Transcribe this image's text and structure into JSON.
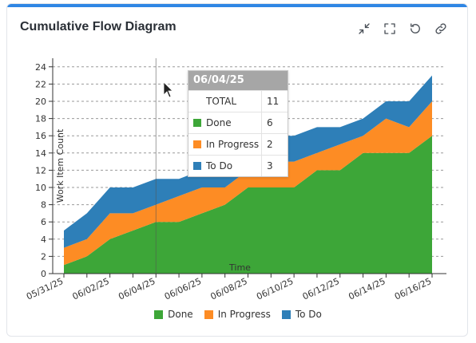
{
  "header": {
    "title": "Cumulative Flow Diagram"
  },
  "toolbar": {
    "icons": [
      "collapse-icon",
      "fullscreen-icon",
      "refresh-icon",
      "link-icon"
    ]
  },
  "tooltip": {
    "date": "06/04/25",
    "total_label": "TOTAL",
    "total_value": "11",
    "rows": [
      {
        "label": "Done",
        "value": "6"
      },
      {
        "label": "In Progress",
        "value": "2"
      },
      {
        "label": "To Do",
        "value": "3"
      }
    ]
  },
  "colors": {
    "done": "#3da638",
    "in_progress": "#fd8c24",
    "to_do": "#2e7fb8"
  },
  "chart_data": {
    "type": "area",
    "stacked": true,
    "xlabel": "Time",
    "ylabel": "Work Item Count",
    "ylim": [
      0,
      25
    ],
    "yticks": [
      0,
      2,
      4,
      6,
      8,
      10,
      12,
      14,
      16,
      18,
      20,
      22,
      24
    ],
    "grid": true,
    "legend_position": "bottom",
    "x": [
      "05/31/25",
      "06/01/25",
      "06/02/25",
      "06/03/25",
      "06/04/25",
      "06/05/25",
      "06/06/25",
      "06/07/25",
      "06/08/25",
      "06/09/25",
      "06/10/25",
      "06/11/25",
      "06/12/25",
      "06/13/25",
      "06/14/25",
      "06/15/25",
      "06/16/25"
    ],
    "xtick_labels": [
      "05/31/25",
      "06/02/25",
      "06/04/25",
      "06/06/25",
      "06/08/25",
      "06/10/25",
      "06/12/25",
      "06/14/25",
      "06/16/25"
    ],
    "series": [
      {
        "name": "Done",
        "values": [
          1,
          2,
          4,
          5,
          6,
          6,
          7,
          8,
          10,
          10,
          10,
          12,
          12,
          14,
          14,
          14,
          16
        ]
      },
      {
        "name": "In Progress",
        "values": [
          2,
          2,
          3,
          2,
          2,
          3,
          3,
          2,
          2,
          3,
          3,
          2,
          3,
          2,
          4,
          3,
          4
        ]
      },
      {
        "name": "To Do",
        "values": [
          2,
          3,
          3,
          3,
          3,
          2,
          2,
          4,
          4,
          3,
          3,
          3,
          2,
          2,
          2,
          3,
          3
        ]
      }
    ],
    "hover_x": "06/04/25"
  }
}
